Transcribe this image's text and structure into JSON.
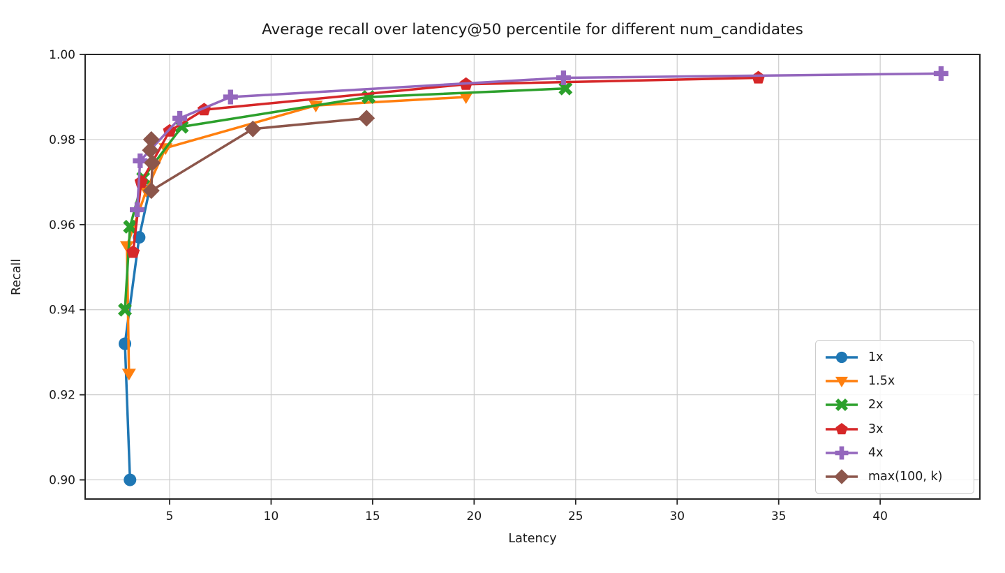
{
  "chart_data": {
    "type": "line",
    "title": "Average recall over latency@50 percentile for different num_candidates",
    "xlabel": "Latency",
    "ylabel": "Recall",
    "xlim": [
      0.84,
      44.91
    ],
    "ylim": [
      0.8955,
      1.0
    ],
    "x_ticks": [
      5,
      10,
      15,
      20,
      25,
      30,
      35,
      40
    ],
    "x_tick_labels": [
      "5",
      "10",
      "15",
      "20",
      "25",
      "30",
      "35",
      "40"
    ],
    "y_ticks": [
      0.9,
      0.92,
      0.94,
      0.96,
      0.98,
      1.0
    ],
    "y_tick_labels": [
      "0.90",
      "0.92",
      "0.94",
      "0.96",
      "0.98",
      "1.00"
    ],
    "grid": true,
    "legend_position": "lower right",
    "series": [
      {
        "name": "1x",
        "color": "#1f77b4",
        "marker": "circle",
        "points": [
          [
            3.05,
            0.9
          ],
          [
            2.8,
            0.932
          ],
          [
            3.5,
            0.957
          ],
          [
            4.0,
            0.968
          ]
        ]
      },
      {
        "name": "1.5x",
        "color": "#ff7f0e",
        "marker": "triangle-down",
        "points": [
          [
            3.0,
            0.925
          ],
          [
            2.9,
            0.955
          ],
          [
            3.85,
            0.968
          ],
          [
            4.8,
            0.978
          ],
          [
            12.2,
            0.988
          ],
          [
            19.6,
            0.99
          ]
        ]
      },
      {
        "name": "2x",
        "color": "#2ca02c",
        "marker": "x",
        "points": [
          [
            2.8,
            0.94
          ],
          [
            3.05,
            0.9595
          ],
          [
            3.7,
            0.971
          ],
          [
            5.6,
            0.983
          ],
          [
            14.8,
            0.99
          ],
          [
            24.5,
            0.992
          ]
        ]
      },
      {
        "name": "3x",
        "color": "#d62728",
        "marker": "pentagon",
        "points": [
          [
            3.2,
            0.9535
          ],
          [
            3.6,
            0.97
          ],
          [
            5.0,
            0.982
          ],
          [
            6.7,
            0.987
          ],
          [
            19.6,
            0.993
          ],
          [
            34.0,
            0.9945
          ]
        ]
      },
      {
        "name": "4x",
        "color": "#9467bd",
        "marker": "plus",
        "points": [
          [
            3.4,
            0.9635
          ],
          [
            3.55,
            0.975
          ],
          [
            5.5,
            0.985
          ],
          [
            8.0,
            0.99
          ],
          [
            24.4,
            0.9945
          ],
          [
            43.0,
            0.9955
          ]
        ]
      },
      {
        "name": "max(100, k)",
        "color": "#8c564b",
        "marker": "diamond",
        "points": [
          [
            4.1,
            0.98
          ],
          [
            4.05,
            0.9775
          ],
          [
            4.15,
            0.9745
          ],
          [
            4.1,
            0.968
          ],
          [
            9.1,
            0.9825
          ],
          [
            14.7,
            0.985
          ]
        ]
      }
    ]
  }
}
